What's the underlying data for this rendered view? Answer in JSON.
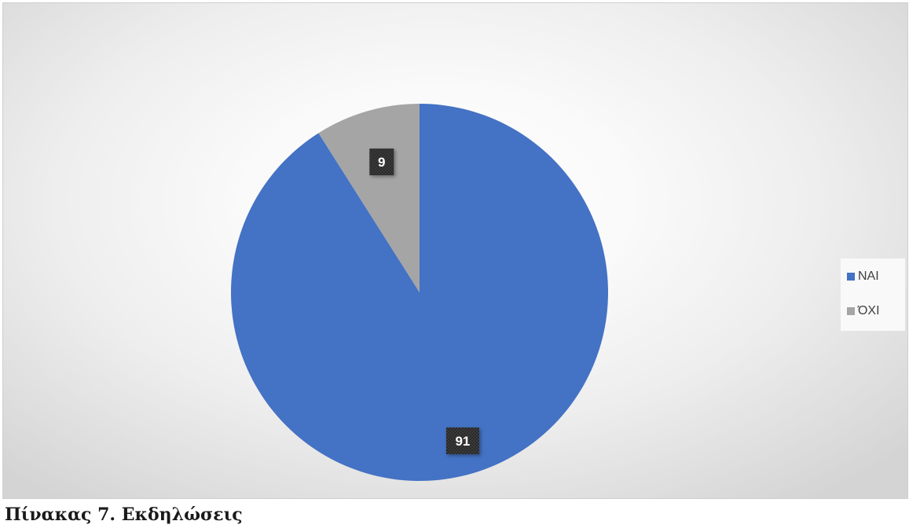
{
  "chart_data": {
    "type": "pie",
    "categories": [
      "ΝΑΙ",
      "ΌΧΙ"
    ],
    "values": [
      91,
      9
    ],
    "colors": [
      "#4472c4",
      "#a5a5a5"
    ],
    "data_labels": [
      "91",
      "9"
    ],
    "legend": {
      "position": "right",
      "entries": [
        "ΝΑΙ",
        "ΌΧΙ"
      ]
    },
    "title": ""
  },
  "caption": "Πίνακας 7. Εκδηλώσεις"
}
